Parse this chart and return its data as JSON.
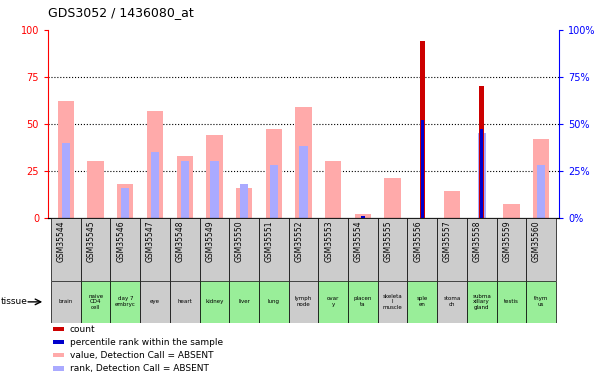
{
  "title": "GDS3052 / 1436080_at",
  "gsm_labels": [
    "GSM35544",
    "GSM35545",
    "GSM35546",
    "GSM35547",
    "GSM35548",
    "GSM35549",
    "GSM35550",
    "GSM35551",
    "GSM35552",
    "GSM35553",
    "GSM35554",
    "GSM35555",
    "GSM35556",
    "GSM35557",
    "GSM35558",
    "GSM35559",
    "GSM35560"
  ],
  "tissue_labels": [
    "brain",
    "naive\nCD4\ncell",
    "day 7\nembryc",
    "eye",
    "heart",
    "kidney",
    "liver",
    "lung",
    "lymph\nnode",
    "ovar\ny",
    "placen\nta",
    "skeleta\nl\nmuscle",
    "sple\nen",
    "stoma\nch",
    "subma\nxillary\ngland",
    "testis",
    "thym\nus"
  ],
  "tissue_green": [
    false,
    true,
    true,
    false,
    false,
    true,
    true,
    true,
    false,
    true,
    true,
    false,
    true,
    false,
    true,
    true,
    true
  ],
  "value_absent": [
    62,
    30,
    18,
    57,
    33,
    44,
    16,
    47,
    59,
    30,
    2,
    21,
    0,
    14,
    0,
    7,
    42
  ],
  "rank_absent": [
    40,
    0,
    16,
    35,
    30,
    30,
    18,
    28,
    38,
    0,
    0,
    0,
    0,
    0,
    45,
    0,
    28
  ],
  "count": [
    0,
    0,
    0,
    0,
    0,
    0,
    0,
    0,
    0,
    0,
    0,
    0,
    94,
    0,
    70,
    0,
    0
  ],
  "percentile": [
    0,
    0,
    0,
    0,
    0,
    0,
    0,
    0,
    0,
    0,
    1,
    0,
    52,
    0,
    47,
    0,
    0
  ],
  "ylim": [
    0,
    100
  ],
  "yticks": [
    0,
    25,
    50,
    75,
    100
  ],
  "color_count": "#cc0000",
  "color_percentile": "#0000cc",
  "color_value_absent": "#ffaaaa",
  "color_rank_absent": "#aaaaff",
  "bg_chart": "#ffffff",
  "bg_gsm": "#cccccc",
  "bg_tissue_normal": "#cccccc",
  "bg_tissue_green": "#99ee99"
}
